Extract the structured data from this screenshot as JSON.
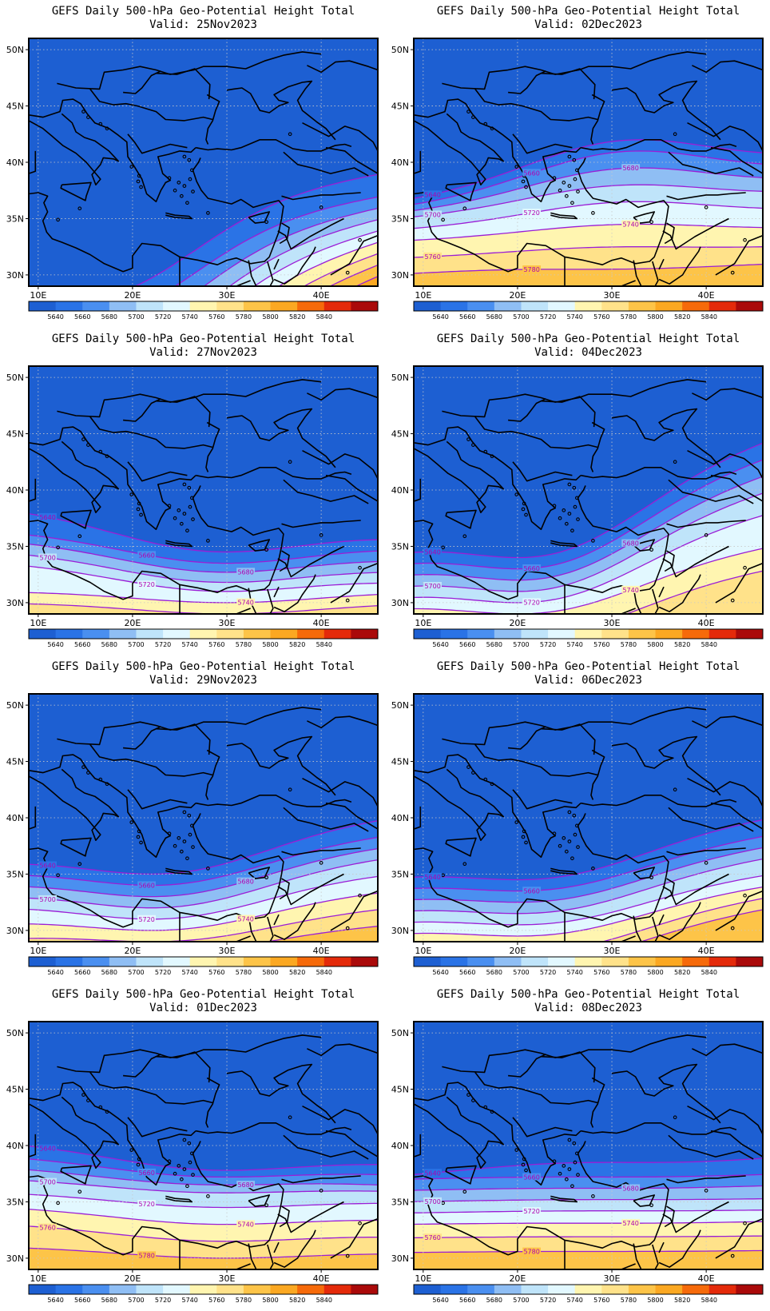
{
  "colorbar": {
    "labels": [
      "5640",
      "5660",
      "5680",
      "5700",
      "5720",
      "5740",
      "5760",
      "5780",
      "5800",
      "5820",
      "5840"
    ],
    "colors": [
      "#1d5fd2",
      "#2a73e6",
      "#4a8ff0",
      "#8fbef4",
      "#bfe4fa",
      "#e2f8ff",
      "#fff5b0",
      "#ffe28a",
      "#fdc448",
      "#fba822",
      "#f66a0a",
      "#e42a0a",
      "#aa0a0a"
    ]
  },
  "axes": {
    "lat_labels": [
      "50N",
      "45N",
      "40N",
      "35N",
      "30N"
    ],
    "lon_labels": [
      "10E",
      "20E",
      "30E",
      "40E"
    ]
  },
  "contour_color": "#9b1ed6",
  "panels": [
    {
      "title": "GEFS Daily 500-hPa Geo-Potential Height Total",
      "valid": "Valid: 25Nov2023",
      "contours": [
        {
          "lat_start": 34,
          "lat_end": 39,
          "trough_lat": 28,
          "trough_lon": 15,
          "label": ""
        },
        {
          "lat_start": 32,
          "lat_end": 37,
          "trough_lat": 26,
          "trough_lon": 15,
          "label": ""
        },
        {
          "lat_start": 30,
          "lat_end": 36,
          "trough_lat": 24,
          "trough_lon": 15,
          "label": ""
        },
        {
          "lat_start": 28,
          "lat_end": 35,
          "trough_lat": 22,
          "trough_lon": 15,
          "label": ""
        },
        {
          "lat_start": 26,
          "lat_end": 34,
          "trough_lat": 20,
          "trough_lon": 15,
          "label": ""
        },
        {
          "lat_start": 24,
          "lat_end": 33,
          "trough_lat": 18,
          "trough_lon": 15,
          "label": ""
        },
        {
          "lat_start": 22,
          "lat_end": 32,
          "trough_lat": 16,
          "trough_lon": 15,
          "label": ""
        },
        {
          "lat_start": 20,
          "lat_end": 31,
          "trough_lat": 14,
          "trough_lon": 15,
          "label": ""
        },
        {
          "lat_start": 18,
          "lat_end": 30,
          "trough_lat": 12,
          "trough_lon": 15,
          "label": ""
        }
      ]
    },
    {
      "title": "GEFS Daily 500-hPa Geo-Potential Height Total",
      "valid": "Valid: 02Dec2023",
      "contours": [
        {
          "lat_start": 36.5,
          "lat_end": 40,
          "trough_lat": 42,
          "trough_lon": 33,
          "label": "5640"
        },
        {
          "lat_start": 36,
          "lat_end": 39,
          "trough_lat": 41,
          "trough_lon": 33,
          "label": "5660"
        },
        {
          "lat_start": 35.5,
          "lat_end": 38,
          "trough_lat": 39.5,
          "trough_lon": 33,
          "label": "5680"
        },
        {
          "lat_start": 35,
          "lat_end": 37,
          "trough_lat": 38,
          "trough_lon": 33,
          "label": "5700"
        },
        {
          "lat_start": 34,
          "lat_end": 35.5,
          "trough_lat": 36.5,
          "trough_lon": 33,
          "label": "5720"
        },
        {
          "lat_start": 33,
          "lat_end": 34,
          "trough_lat": 34.5,
          "trough_lon": 33,
          "label": "5740"
        },
        {
          "lat_start": 31.5,
          "lat_end": 32.5,
          "trough_lat": 32.5,
          "trough_lon": 33,
          "label": "5760"
        },
        {
          "lat_start": 30,
          "lat_end": 31,
          "trough_lat": 30.5,
          "trough_lon": 25,
          "label": "5780"
        }
      ]
    },
    {
      "title": "GEFS Daily 500-hPa Geo-Potential Height Total",
      "valid": "Valid: 27Nov2023",
      "contours": [
        {
          "lat_start": 38.3,
          "lat_end": 36,
          "trough_lat": 34.5,
          "trough_lon": 30,
          "label": "5640"
        },
        {
          "lat_start": 36.3,
          "lat_end": 35,
          "trough_lat": 33.5,
          "trough_lon": 30,
          "label": "5660"
        },
        {
          "lat_start": 35.5,
          "lat_end": 34,
          "trough_lat": 32.7,
          "trough_lon": 30,
          "label": "5680"
        },
        {
          "lat_start": 34.5,
          "lat_end": 33,
          "trough_lat": 31.8,
          "trough_lon": 30,
          "label": "5700"
        },
        {
          "lat_start": 33.5,
          "lat_end": 32,
          "trough_lat": 31,
          "trough_lon": 30,
          "label": "5720"
        },
        {
          "lat_start": 31,
          "lat_end": 31,
          "trough_lat": 30,
          "trough_lon": 30,
          "label": "5740"
        },
        {
          "lat_start": 30,
          "lat_end": 30,
          "trough_lat": 29,
          "trough_lon": 30,
          "label": ""
        }
      ]
    },
    {
      "title": "GEFS Daily 500-hPa Geo-Potential Height Total",
      "valid": "Valid: 04Dec2023",
      "contours": [
        {
          "lat_start": 35,
          "lat_end": 44.5,
          "trough_lat": 34,
          "trough_lon": 20,
          "label": "5640"
        },
        {
          "lat_start": 34,
          "lat_end": 43,
          "trough_lat": 33,
          "trough_lon": 20,
          "label": "5660"
        },
        {
          "lat_start": 33,
          "lat_end": 41.5,
          "trough_lat": 32,
          "trough_lon": 20,
          "label": "5680"
        },
        {
          "lat_start": 32,
          "lat_end": 40,
          "trough_lat": 31,
          "trough_lon": 20,
          "label": "5700"
        },
        {
          "lat_start": 31,
          "lat_end": 38,
          "trough_lat": 30,
          "trough_lon": 20,
          "label": "5720"
        },
        {
          "lat_start": 30,
          "lat_end": 35,
          "trough_lat": 29,
          "trough_lon": 20,
          "label": "5740"
        },
        {
          "lat_start": 28,
          "lat_end": 33,
          "trough_lat": 27,
          "trough_lon": 20,
          "label": ""
        }
      ]
    },
    {
      "title": "GEFS Daily 500-hPa Geo-Potential Height Total",
      "valid": "Valid: 29Nov2023",
      "contours": [
        {
          "lat_start": 36.5,
          "lat_end": 40,
          "trough_lat": 35,
          "trough_lon": 22,
          "label": "5640"
        },
        {
          "lat_start": 35.5,
          "lat_end": 38.5,
          "trough_lat": 34,
          "trough_lon": 22,
          "label": "5660"
        },
        {
          "lat_start": 34.5,
          "lat_end": 37.5,
          "trough_lat": 33,
          "trough_lon": 22,
          "label": "5680"
        },
        {
          "lat_start": 33.5,
          "lat_end": 36.5,
          "trough_lat": 32,
          "trough_lon": 22,
          "label": "5700"
        },
        {
          "lat_start": 32.5,
          "lat_end": 35,
          "trough_lat": 31,
          "trough_lon": 22,
          "label": "5720"
        },
        {
          "lat_start": 31,
          "lat_end": 33.5,
          "trough_lat": 30,
          "trough_lon": 22,
          "label": "5740"
        },
        {
          "lat_start": 29.5,
          "lat_end": 32,
          "trough_lat": 29,
          "trough_lon": 22,
          "label": ""
        },
        {
          "lat_start": 28.5,
          "lat_end": 30.5,
          "trough_lat": 28,
          "trough_lon": 22,
          "label": ""
        }
      ]
    },
    {
      "title": "GEFS Daily 500-hPa Geo-Potential Height Total",
      "valid": "Valid: 06Dec2023",
      "contours": [
        {
          "lat_start": 35,
          "lat_end": 40,
          "trough_lat": 34.5,
          "trough_lon": 20,
          "label": "5640"
        },
        {
          "lat_start": 34,
          "lat_end": 38.5,
          "trough_lat": 33.5,
          "trough_lon": 20,
          "label": "5660"
        },
        {
          "lat_start": 33,
          "lat_end": 37.5,
          "trough_lat": 32.5,
          "trough_lon": 20,
          "label": ""
        },
        {
          "lat_start": 32,
          "lat_end": 36.5,
          "trough_lat": 31.5,
          "trough_lon": 20,
          "label": ""
        },
        {
          "lat_start": 31,
          "lat_end": 35,
          "trough_lat": 30.5,
          "trough_lon": 20,
          "label": ""
        },
        {
          "lat_start": 30,
          "lat_end": 34,
          "trough_lat": 29.5,
          "trough_lon": 20,
          "label": ""
        },
        {
          "lat_start": 28.5,
          "lat_end": 33,
          "trough_lat": 28,
          "trough_lon": 20,
          "label": ""
        },
        {
          "lat_start": 27.5,
          "lat_end": 32,
          "trough_lat": 27,
          "trough_lon": 20,
          "label": ""
        }
      ]
    },
    {
      "title": "GEFS Daily 500-hPa Geo-Potential Height Total",
      "valid": "Valid: 01Dec2023",
      "contours": [
        {
          "lat_start": 40.2,
          "lat_end": 38.5,
          "trough_lat": 37.8,
          "trough_lon": 30,
          "label": "5640"
        },
        {
          "lat_start": 39,
          "lat_end": 37.5,
          "trough_lat": 37.2,
          "trough_lon": 30,
          "label": "5660"
        },
        {
          "lat_start": 38,
          "lat_end": 36.5,
          "trough_lat": 36.5,
          "trough_lon": 30,
          "label": "5680"
        },
        {
          "lat_start": 37,
          "lat_end": 36,
          "trough_lat": 35.8,
          "trough_lon": 30,
          "label": "5700"
        },
        {
          "lat_start": 35.8,
          "lat_end": 35,
          "trough_lat": 34.5,
          "trough_lon": 30,
          "label": "5720"
        },
        {
          "lat_start": 34.5,
          "lat_end": 33.5,
          "trough_lat": 33,
          "trough_lon": 30,
          "label": "5740"
        },
        {
          "lat_start": 33,
          "lat_end": 32,
          "trough_lat": 31.5,
          "trough_lon": 30,
          "label": "5760"
        },
        {
          "lat_start": 31,
          "lat_end": 30.5,
          "trough_lat": 30,
          "trough_lon": 30,
          "label": "5780"
        }
      ]
    },
    {
      "title": "GEFS Daily 500-hPa Geo-Potential Height Total",
      "valid": "Valid: 08Dec2023",
      "contours": [
        {
          "lat_start": 37.3,
          "lat_end": 39,
          "trough_lat": 38.5,
          "trough_lon": 30,
          "label": "5640"
        },
        {
          "lat_start": 37,
          "lat_end": 37.5,
          "trough_lat": 37.2,
          "trough_lon": 30,
          "label": "5660"
        },
        {
          "lat_start": 36,
          "lat_end": 36.5,
          "trough_lat": 36.2,
          "trough_lon": 30,
          "label": "5680"
        },
        {
          "lat_start": 35,
          "lat_end": 35.3,
          "trough_lat": 35.2,
          "trough_lon": 30,
          "label": "5700"
        },
        {
          "lat_start": 34,
          "lat_end": 34.3,
          "trough_lat": 34.2,
          "trough_lon": 30,
          "label": "5720"
        },
        {
          "lat_start": 33,
          "lat_end": 33.3,
          "trough_lat": 33.1,
          "trough_lon": 30,
          "label": "5740"
        },
        {
          "lat_start": 31.8,
          "lat_end": 32,
          "trough_lat": 31.9,
          "trough_lon": 30,
          "label": "5760"
        },
        {
          "lat_start": 30.5,
          "lat_end": 30.7,
          "trough_lat": 30.6,
          "trough_lon": 30,
          "label": "5780"
        }
      ]
    }
  ]
}
